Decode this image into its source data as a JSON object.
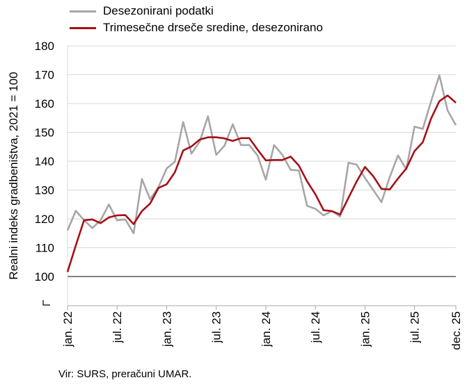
{
  "chart_data": {
    "type": "line",
    "ylabel": "Realni indeks gradbeništva, 2021 = 100",
    "ylim": [
      100,
      180
    ],
    "y_ticks": [
      "100",
      "110",
      "120",
      "130",
      "140",
      "150",
      "160",
      "170",
      "180"
    ],
    "x_tick_labels": [
      "jan. 22",
      "jul. 22",
      "jan. 23",
      "jul. 23",
      "jan. 24",
      "jul. 24",
      "jan. 25",
      "jul. 25",
      "dec. 25"
    ],
    "x_tick_positions": [
      0,
      6,
      12,
      18,
      24,
      30,
      36,
      42,
      47
    ],
    "x": [
      "jan. 22",
      "feb. 22",
      "mar. 22",
      "apr. 22",
      "maj 22",
      "jun. 22",
      "jul. 22",
      "avg. 22",
      "sep. 22",
      "okt. 22",
      "nov. 22",
      "dec. 22",
      "jan. 23",
      "feb. 23",
      "mar. 23",
      "apr. 23",
      "maj 23",
      "jun. 23",
      "jul. 23",
      "avg. 23",
      "sep. 23",
      "okt. 23",
      "nov. 23",
      "dec. 23",
      "jan. 24",
      "feb. 24",
      "mar. 24",
      "apr. 24",
      "maj 24",
      "jun. 24",
      "jul. 24",
      "avg. 24",
      "sep. 24",
      "okt. 24",
      "nov. 24",
      "dec. 24",
      "jan. 25",
      "feb. 25",
      "mar. 25",
      "apr. 25",
      "maj 25",
      "jun. 25",
      "jul. 25",
      "avg. 25",
      "sep. 25",
      "okt. 25",
      "nov. 25",
      "dec. 25"
    ],
    "series": [
      {
        "name": "Desezonirani podatki",
        "color": "#a6a6a6",
        "values": [
          116.0,
          122.8,
          119.6,
          116.8,
          119.5,
          125.0,
          119.5,
          119.8,
          115.0,
          133.8,
          126.8,
          131.0,
          137.5,
          139.8,
          153.6,
          142.6,
          146.8,
          155.6,
          142.2,
          145.4,
          152.8,
          145.6,
          145.6,
          142.0,
          133.6,
          145.6,
          142.2,
          137.0,
          136.8,
          124.5,
          123.5,
          121.2,
          122.7,
          120.8,
          139.5,
          138.8,
          134.2,
          130.0,
          125.8,
          134.5,
          142.0,
          137.2,
          152.0,
          151.2,
          160.8,
          169.8,
          157.6,
          152.5
        ]
      },
      {
        "name": "Trimesečne drseče sredine, desezonirano",
        "color": "#a50f15",
        "values": [
          101.6,
          110.8,
          119.5,
          119.8,
          118.5,
          120.5,
          121.2,
          121.3,
          118.2,
          122.7,
          125.3,
          130.7,
          132.0,
          136.2,
          143.7,
          145.1,
          147.5,
          148.3,
          148.3,
          147.9,
          147.0,
          148.0,
          148.0,
          144.0,
          140.3,
          140.4,
          140.4,
          141.6,
          138.5,
          133.0,
          128.5,
          123.0,
          122.7,
          121.5,
          127.3,
          133.0,
          138.0,
          134.8,
          130.4,
          130.2,
          134.0,
          137.5,
          143.5,
          146.6,
          154.8,
          160.8,
          162.8,
          160.3
        ]
      }
    ],
    "grid": true,
    "legend_position": "top-left"
  },
  "footer": {
    "source": "Vir: SURS, preračuni UMAR."
  }
}
